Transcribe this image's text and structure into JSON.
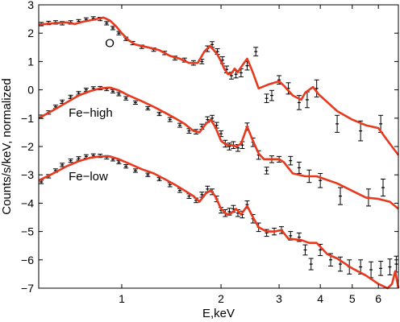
{
  "chart_data": {
    "type": "line",
    "xlabel": "E,keV",
    "ylabel": "Counts/s/keV, normalized",
    "x_scale": "log",
    "xlim": [
      0.56,
      6.9
    ],
    "ylim": [
      -7,
      3
    ],
    "x_ticks": [
      1,
      2,
      3,
      4,
      5,
      6
    ],
    "x_tick_labels": [
      "1",
      "2",
      "3",
      "4",
      "5",
      "6"
    ],
    "y_ticks": [
      -7,
      -6,
      -5,
      -4,
      -3,
      -2,
      -1,
      0,
      1,
      2,
      3
    ],
    "y_tick_labels": [
      "−7",
      "−6",
      "−5",
      "−4",
      "−3",
      "−2",
      "−1",
      "0",
      "1",
      "2",
      "3"
    ],
    "grid": false,
    "legend": "none",
    "colors": {
      "model": "#e8391e",
      "data": "#000000",
      "axes": "#000000"
    },
    "series": [
      {
        "name": "O",
        "model": {
          "x": [
            0.56,
            0.62,
            0.68,
            0.72,
            0.76,
            0.8,
            0.84,
            0.88,
            0.92,
            0.96,
            1.0,
            1.05,
            1.1,
            1.2,
            1.3,
            1.4,
            1.5,
            1.6,
            1.7,
            1.78,
            1.85,
            1.9,
            1.95,
            2.0,
            2.05,
            2.1,
            2.15,
            2.2,
            2.25,
            2.3,
            2.4,
            2.5,
            2.6,
            2.8,
            3.0,
            3.1,
            3.3,
            3.5,
            3.6,
            3.8,
            3.95,
            4.5,
            5.0,
            5.5,
            6.0,
            6.5,
            6.9
          ],
          "y": [
            2.3,
            2.35,
            2.38,
            2.32,
            2.4,
            2.45,
            2.5,
            2.55,
            2.45,
            2.25,
            2.0,
            1.75,
            1.6,
            1.5,
            1.4,
            1.2,
            1.1,
            0.95,
            0.95,
            1.35,
            1.55,
            1.4,
            1.25,
            1.0,
            0.72,
            0.55,
            0.58,
            0.75,
            0.62,
            0.8,
            1.1,
            0.6,
            0.05,
            0.2,
            0.3,
            0.15,
            -0.2,
            -0.35,
            -0.1,
            0.1,
            -0.15,
            -0.75,
            -1.05,
            -1.25,
            -1.35,
            -1.9,
            -2.3
          ]
        },
        "data": {
          "x": [
            0.57,
            0.6,
            0.63,
            0.66,
            0.7,
            0.74,
            0.78,
            0.82,
            0.86,
            0.9,
            0.94,
            0.98,
            1.03,
            1.08,
            1.15,
            1.25,
            1.35,
            1.45,
            1.55,
            1.65,
            1.75,
            1.82,
            1.88,
            1.95,
            2.02,
            2.08,
            2.15,
            2.22,
            2.3,
            2.4,
            2.55,
            2.75,
            2.85,
            3.0,
            3.2,
            3.45,
            3.65,
            3.9,
            4.5,
            5.3,
            6.1
          ],
          "y": [
            2.32,
            2.36,
            2.38,
            2.35,
            2.38,
            2.42,
            2.48,
            2.52,
            2.5,
            2.35,
            2.18,
            2.0,
            1.8,
            1.65,
            1.52,
            1.42,
            1.3,
            1.12,
            1.05,
            0.95,
            1.0,
            1.45,
            1.6,
            1.35,
            1.05,
            0.72,
            0.5,
            0.55,
            0.6,
            0.85,
            1.35,
            -0.3,
            -0.2,
            0.35,
            0.05,
            -0.45,
            -0.35,
            0.05,
            -1.2,
            -1.45,
            -1.2
          ],
          "err": [
            0.06,
            0.06,
            0.06,
            0.06,
            0.06,
            0.06,
            0.06,
            0.06,
            0.06,
            0.06,
            0.06,
            0.06,
            0.06,
            0.06,
            0.06,
            0.06,
            0.06,
            0.07,
            0.07,
            0.08,
            0.08,
            0.1,
            0.1,
            0.1,
            0.12,
            0.12,
            0.12,
            0.13,
            0.14,
            0.15,
            0.15,
            0.15,
            0.18,
            0.15,
            0.2,
            0.25,
            0.28,
            0.3,
            0.3,
            0.35,
            0.3
          ]
        }
      },
      {
        "name": "Fe−high",
        "model": {
          "x": [
            0.56,
            0.62,
            0.68,
            0.74,
            0.8,
            0.86,
            0.92,
            0.98,
            1.05,
            1.15,
            1.25,
            1.35,
            1.45,
            1.55,
            1.65,
            1.72,
            1.8,
            1.86,
            1.92,
            2.0,
            2.08,
            2.15,
            2.22,
            2.3,
            2.4,
            2.5,
            2.6,
            2.7,
            3.0,
            3.1,
            3.3,
            3.6,
            3.9,
            4.5,
            5.5,
            6.0,
            6.5,
            6.9
          ],
          "y": [
            -1.0,
            -0.72,
            -0.45,
            -0.2,
            -0.05,
            0.05,
            0.08,
            -0.02,
            -0.2,
            -0.4,
            -0.6,
            -0.8,
            -1.0,
            -1.2,
            -1.45,
            -1.5,
            -1.2,
            -1.05,
            -1.3,
            -1.8,
            -1.95,
            -1.95,
            -2.0,
            -1.9,
            -1.3,
            -1.8,
            -2.25,
            -2.45,
            -2.45,
            -2.55,
            -2.95,
            -3.05,
            -3.05,
            -3.3,
            -3.8,
            -3.85,
            -3.95,
            -4.2
          ]
        },
        "data": {
          "x": [
            0.57,
            0.6,
            0.63,
            0.66,
            0.7,
            0.74,
            0.78,
            0.82,
            0.86,
            0.9,
            0.94,
            0.98,
            1.03,
            1.1,
            1.2,
            1.3,
            1.4,
            1.5,
            1.6,
            1.68,
            1.75,
            1.82,
            1.88,
            1.94,
            2.0,
            2.06,
            2.12,
            2.18,
            2.25,
            2.32,
            2.4,
            2.5,
            2.6,
            2.75,
            2.85,
            3.0,
            3.25,
            3.45,
            3.7,
            4.0,
            4.6,
            5.6,
            6.2
          ],
          "y": [
            -0.95,
            -0.8,
            -0.6,
            -0.42,
            -0.25,
            -0.12,
            0.0,
            0.05,
            0.06,
            0.03,
            -0.05,
            -0.15,
            -0.3,
            -0.45,
            -0.65,
            -0.85,
            -1.05,
            -1.25,
            -1.45,
            -1.48,
            -1.3,
            -1.05,
            -1.0,
            -1.25,
            -1.55,
            -1.9,
            -2.0,
            -1.95,
            -2.05,
            -1.95,
            -1.3,
            -1.85,
            -2.3,
            -2.85,
            -2.45,
            -2.45,
            -2.5,
            -2.75,
            -3.05,
            -3.2,
            -3.75,
            -3.8,
            -3.45
          ],
          "err": [
            0.06,
            0.06,
            0.06,
            0.06,
            0.06,
            0.06,
            0.06,
            0.06,
            0.06,
            0.06,
            0.06,
            0.06,
            0.06,
            0.06,
            0.06,
            0.06,
            0.07,
            0.07,
            0.08,
            0.08,
            0.09,
            0.1,
            0.1,
            0.1,
            0.1,
            0.12,
            0.12,
            0.12,
            0.12,
            0.12,
            0.13,
            0.15,
            0.15,
            0.12,
            0.12,
            0.1,
            0.15,
            0.2,
            0.22,
            0.25,
            0.3,
            0.3,
            0.3
          ]
        }
      },
      {
        "name": "Fe−low",
        "model": {
          "x": [
            0.56,
            0.62,
            0.68,
            0.74,
            0.8,
            0.86,
            0.92,
            0.98,
            1.05,
            1.15,
            1.25,
            1.35,
            1.45,
            1.55,
            1.65,
            1.72,
            1.8,
            1.86,
            1.92,
            2.0,
            2.08,
            2.15,
            2.22,
            2.3,
            2.4,
            2.5,
            2.6,
            2.75,
            2.9,
            3.05,
            3.2,
            3.5,
            3.7,
            3.9,
            4.2,
            4.5,
            5.0,
            5.5,
            6.0,
            6.4,
            6.6,
            6.75,
            6.9
          ],
          "y": [
            -3.2,
            -2.95,
            -2.7,
            -2.52,
            -2.4,
            -2.35,
            -2.35,
            -2.45,
            -2.6,
            -2.8,
            -2.95,
            -3.15,
            -3.35,
            -3.55,
            -3.75,
            -3.95,
            -3.65,
            -3.55,
            -3.75,
            -4.2,
            -4.4,
            -4.35,
            -4.2,
            -4.4,
            -4.1,
            -4.5,
            -4.85,
            -5.0,
            -5.0,
            -4.95,
            -5.25,
            -5.3,
            -5.4,
            -5.4,
            -5.8,
            -5.95,
            -6.3,
            -6.55,
            -6.85,
            -7.0,
            -6.85,
            -6.4,
            -7.0
          ]
        },
        "data": {
          "x": [
            0.57,
            0.6,
            0.63,
            0.66,
            0.7,
            0.74,
            0.78,
            0.82,
            0.86,
            0.9,
            0.94,
            0.98,
            1.03,
            1.1,
            1.2,
            1.3,
            1.4,
            1.5,
            1.6,
            1.68,
            1.75,
            1.82,
            1.88,
            1.94,
            2.0,
            2.06,
            2.12,
            2.18,
            2.25,
            2.32,
            2.4,
            2.5,
            2.6,
            2.75,
            2.9,
            3.05,
            3.25,
            3.45,
            3.6,
            3.75,
            4.0,
            4.3,
            4.6,
            4.9,
            5.3,
            5.7,
            6.1,
            6.5,
            6.8
          ],
          "y": [
            -3.25,
            -3.05,
            -2.85,
            -2.65,
            -2.5,
            -2.42,
            -2.35,
            -2.32,
            -2.33,
            -2.38,
            -2.45,
            -2.55,
            -2.7,
            -2.85,
            -3.0,
            -3.15,
            -3.35,
            -3.55,
            -3.75,
            -3.9,
            -3.7,
            -3.5,
            -3.6,
            -3.85,
            -4.25,
            -4.35,
            -4.3,
            -4.2,
            -4.35,
            -4.4,
            -4.05,
            -4.55,
            -4.85,
            -5.05,
            -5.0,
            -4.95,
            -5.15,
            -5.2,
            -5.65,
            -6.15,
            -5.65,
            -6.0,
            -6.15,
            -6.25,
            -6.25,
            -6.35,
            -6.3,
            -6.25,
            -6.15
          ],
          "err": [
            0.06,
            0.06,
            0.06,
            0.06,
            0.06,
            0.06,
            0.06,
            0.06,
            0.06,
            0.06,
            0.06,
            0.06,
            0.06,
            0.06,
            0.06,
            0.06,
            0.07,
            0.07,
            0.08,
            0.08,
            0.09,
            0.1,
            0.1,
            0.1,
            0.1,
            0.12,
            0.12,
            0.12,
            0.12,
            0.12,
            0.13,
            0.15,
            0.15,
            0.12,
            0.12,
            0.12,
            0.15,
            0.15,
            0.18,
            0.2,
            0.2,
            0.22,
            0.25,
            0.25,
            0.25,
            0.28,
            0.25,
            0.28,
            0.28
          ]
        }
      }
    ]
  }
}
